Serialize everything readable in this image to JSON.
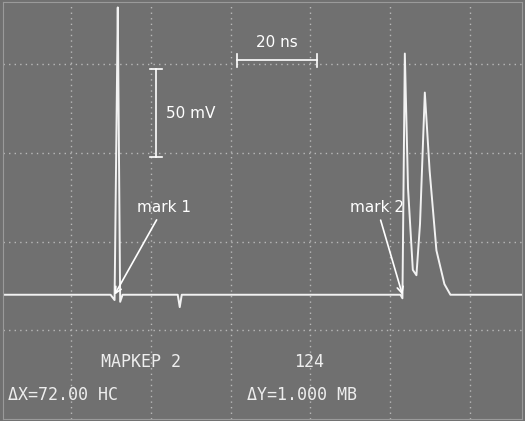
{
  "chart_data": {
    "type": "line",
    "x": [
      0,
      27,
      28,
      28.6,
      28.8,
      29.4,
      30,
      43.8,
      44.3,
      44.8,
      99.5,
      100,
      100.6,
      101.4,
      102.6,
      103.5,
      104.4,
      105.6,
      106.8,
      108.5,
      110.5,
      112,
      130
    ],
    "values": [
      0,
      0,
      -3,
      120,
      162,
      -4,
      0,
      0,
      -7,
      0,
      0,
      -2,
      136,
      60,
      14,
      11,
      40,
      114,
      70,
      25,
      6,
      0,
      0
    ],
    "color": "#f2f2f2",
    "xlim": [
      0,
      130
    ],
    "ylim": [
      -70,
      165
    ],
    "xticks": [
      17,
      37,
      57,
      77,
      97,
      117
    ],
    "yticks": [
      -20,
      30,
      80,
      130
    ],
    "grid": true,
    "tick_labels": false,
    "scale_bars": {
      "y": {
        "label": "50 mV",
        "value": 50
      },
      "x": {
        "label": "20 ns",
        "value": 20
      }
    },
    "markers": [
      {
        "label": "mark 1",
        "x": 28,
        "y": 0
      },
      {
        "label": "mark 2",
        "x": 100,
        "y": 0
      }
    ],
    "readout": [
      "МАРКЕР 2",
      "124",
      "ΔX=72.00 НС",
      "ΔY=1.000 МВ"
    ]
  }
}
